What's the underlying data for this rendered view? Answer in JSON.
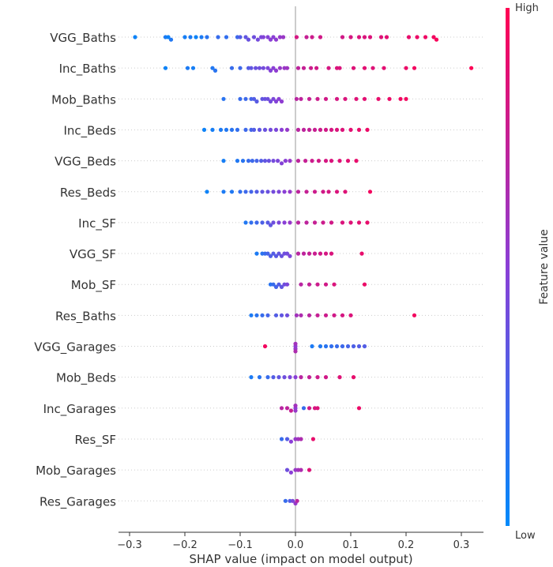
{
  "chart_data": {
    "type": "scatter",
    "subtype": "shap-beeswarm",
    "xlabel": "SHAP value (impact on model output)",
    "xticks": [
      -0.3,
      -0.2,
      -0.1,
      0.0,
      0.1,
      0.2,
      0.3
    ],
    "xtick_labels": [
      "−0.3",
      "−0.2",
      "−0.1",
      "0.0",
      "0.1",
      "0.2",
      "0.3"
    ],
    "xlim": [
      -0.32,
      0.34
    ],
    "grid": false,
    "colorbar": {
      "label": "Feature value",
      "high_label": "High",
      "low_label": "Low",
      "low_color": "#008afb",
      "high_color": "#ff0052"
    },
    "features": [
      {
        "name": "VGG_Baths",
        "points": [
          [
            -0.29,
            0.05
          ],
          [
            -0.235,
            0.1
          ],
          [
            -0.23,
            0.05
          ],
          [
            -0.225,
            0.12
          ],
          [
            -0.2,
            0.08
          ],
          [
            -0.19,
            0.1
          ],
          [
            -0.18,
            0.05
          ],
          [
            -0.17,
            0.1
          ],
          [
            -0.16,
            0.15
          ],
          [
            -0.14,
            0.2
          ],
          [
            -0.125,
            0.18
          ],
          [
            -0.105,
            0.22
          ],
          [
            -0.1,
            0.3
          ],
          [
            -0.09,
            0.35
          ],
          [
            -0.085,
            0.38
          ],
          [
            -0.075,
            0.4
          ],
          [
            -0.068,
            0.42
          ],
          [
            -0.062,
            0.45
          ],
          [
            -0.058,
            0.47
          ],
          [
            -0.05,
            0.48
          ],
          [
            -0.045,
            0.5
          ],
          [
            -0.04,
            0.5
          ],
          [
            -0.035,
            0.52
          ],
          [
            -0.028,
            0.55
          ],
          [
            -0.022,
            0.56
          ],
          [
            0.002,
            0.82
          ],
          [
            0.02,
            0.75
          ],
          [
            0.03,
            0.78
          ],
          [
            0.045,
            0.8
          ],
          [
            0.085,
            0.8
          ],
          [
            0.1,
            0.82
          ],
          [
            0.115,
            0.84
          ],
          [
            0.125,
            0.84
          ],
          [
            0.135,
            0.85
          ],
          [
            0.155,
            0.86
          ],
          [
            0.165,
            0.88
          ],
          [
            0.205,
            0.9
          ],
          [
            0.22,
            0.92
          ],
          [
            0.235,
            0.93
          ],
          [
            0.25,
            0.95
          ],
          [
            0.255,
            0.97
          ]
        ]
      },
      {
        "name": "Inc_Baths",
        "points": [
          [
            -0.235,
            0.05
          ],
          [
            -0.195,
            0.1
          ],
          [
            -0.185,
            0.08
          ],
          [
            -0.15,
            0.12
          ],
          [
            -0.145,
            0.15
          ],
          [
            -0.115,
            0.2
          ],
          [
            -0.1,
            0.22
          ],
          [
            -0.085,
            0.3
          ],
          [
            -0.08,
            0.35
          ],
          [
            -0.072,
            0.38
          ],
          [
            -0.065,
            0.4
          ],
          [
            -0.058,
            0.42
          ],
          [
            -0.05,
            0.45
          ],
          [
            -0.045,
            0.48
          ],
          [
            -0.04,
            0.5
          ],
          [
            -0.035,
            0.52
          ],
          [
            -0.028,
            0.55
          ],
          [
            -0.02,
            0.56
          ],
          [
            -0.015,
            0.58
          ],
          [
            0.005,
            0.72
          ],
          [
            0.015,
            0.75
          ],
          [
            0.028,
            0.78
          ],
          [
            0.038,
            0.8
          ],
          [
            0.06,
            0.82
          ],
          [
            0.075,
            0.84
          ],
          [
            0.08,
            0.84
          ],
          [
            0.105,
            0.86
          ],
          [
            0.125,
            0.88
          ],
          [
            0.14,
            0.86
          ],
          [
            0.16,
            0.88
          ],
          [
            0.2,
            0.92
          ],
          [
            0.215,
            0.95
          ],
          [
            0.318,
            0.99
          ]
        ]
      },
      {
        "name": "Mob_Baths",
        "points": [
          [
            -0.13,
            0.15
          ],
          [
            -0.1,
            0.2
          ],
          [
            -0.09,
            0.22
          ],
          [
            -0.08,
            0.25
          ],
          [
            -0.075,
            0.3
          ],
          [
            -0.07,
            0.32
          ],
          [
            -0.06,
            0.35
          ],
          [
            -0.055,
            0.38
          ],
          [
            -0.05,
            0.4
          ],
          [
            -0.045,
            0.42
          ],
          [
            -0.04,
            0.45
          ],
          [
            -0.035,
            0.48
          ],
          [
            -0.03,
            0.5
          ],
          [
            -0.025,
            0.52
          ],
          [
            0.002,
            0.7
          ],
          [
            0.01,
            0.72
          ],
          [
            0.025,
            0.75
          ],
          [
            0.04,
            0.78
          ],
          [
            0.055,
            0.8
          ],
          [
            0.075,
            0.82
          ],
          [
            0.09,
            0.84
          ],
          [
            0.11,
            0.86
          ],
          [
            0.125,
            0.88
          ],
          [
            0.15,
            0.9
          ],
          [
            0.17,
            0.92
          ],
          [
            0.19,
            0.94
          ],
          [
            0.2,
            0.95
          ]
        ]
      },
      {
        "name": "Inc_Beds",
        "points": [
          [
            -0.165,
            0.05
          ],
          [
            -0.15,
            0.08
          ],
          [
            -0.135,
            0.1
          ],
          [
            -0.125,
            0.12
          ],
          [
            -0.115,
            0.15
          ],
          [
            -0.105,
            0.18
          ],
          [
            -0.09,
            0.22
          ],
          [
            -0.08,
            0.25
          ],
          [
            -0.075,
            0.3
          ],
          [
            -0.065,
            0.35
          ],
          [
            -0.055,
            0.38
          ],
          [
            -0.045,
            0.42
          ],
          [
            -0.035,
            0.45
          ],
          [
            -0.025,
            0.5
          ],
          [
            -0.015,
            0.55
          ],
          [
            0.005,
            0.7
          ],
          [
            0.015,
            0.72
          ],
          [
            0.025,
            0.74
          ],
          [
            0.035,
            0.76
          ],
          [
            0.045,
            0.78
          ],
          [
            0.055,
            0.8
          ],
          [
            0.065,
            0.82
          ],
          [
            0.075,
            0.84
          ],
          [
            0.085,
            0.85
          ],
          [
            0.1,
            0.88
          ],
          [
            0.115,
            0.9
          ],
          [
            0.13,
            0.92
          ]
        ]
      },
      {
        "name": "VGG_Beds",
        "points": [
          [
            -0.13,
            0.08
          ],
          [
            -0.105,
            0.12
          ],
          [
            -0.095,
            0.15
          ],
          [
            -0.085,
            0.2
          ],
          [
            -0.078,
            0.22
          ],
          [
            -0.07,
            0.25
          ],
          [
            -0.062,
            0.3
          ],
          [
            -0.055,
            0.35
          ],
          [
            -0.048,
            0.38
          ],
          [
            -0.04,
            0.42
          ],
          [
            -0.032,
            0.45
          ],
          [
            -0.025,
            0.48
          ],
          [
            -0.018,
            0.5
          ],
          [
            -0.01,
            0.55
          ],
          [
            0.005,
            0.72
          ],
          [
            0.018,
            0.75
          ],
          [
            0.03,
            0.78
          ],
          [
            0.042,
            0.8
          ],
          [
            0.055,
            0.82
          ],
          [
            0.065,
            0.84
          ],
          [
            0.08,
            0.86
          ],
          [
            0.095,
            0.88
          ],
          [
            0.11,
            0.9
          ]
        ]
      },
      {
        "name": "Res_Beds",
        "points": [
          [
            -0.16,
            0.05
          ],
          [
            -0.13,
            0.1
          ],
          [
            -0.115,
            0.12
          ],
          [
            -0.1,
            0.18
          ],
          [
            -0.09,
            0.22
          ],
          [
            -0.08,
            0.25
          ],
          [
            -0.07,
            0.3
          ],
          [
            -0.06,
            0.35
          ],
          [
            -0.05,
            0.38
          ],
          [
            -0.04,
            0.42
          ],
          [
            -0.03,
            0.45
          ],
          [
            -0.02,
            0.5
          ],
          [
            -0.01,
            0.55
          ],
          [
            0.005,
            0.72
          ],
          [
            0.02,
            0.75
          ],
          [
            0.035,
            0.78
          ],
          [
            0.05,
            0.8
          ],
          [
            0.06,
            0.82
          ],
          [
            0.075,
            0.84
          ],
          [
            0.09,
            0.86
          ],
          [
            0.135,
            0.95
          ]
        ]
      },
      {
        "name": "Inc_SF",
        "points": [
          [
            -0.09,
            0.12
          ],
          [
            -0.08,
            0.18
          ],
          [
            -0.07,
            0.22
          ],
          [
            -0.06,
            0.28
          ],
          [
            -0.05,
            0.32
          ],
          [
            -0.045,
            0.35
          ],
          [
            -0.04,
            0.4
          ],
          [
            -0.03,
            0.45
          ],
          [
            -0.02,
            0.5
          ],
          [
            -0.01,
            0.55
          ],
          [
            0.005,
            0.7
          ],
          [
            0.02,
            0.72
          ],
          [
            0.035,
            0.75
          ],
          [
            0.05,
            0.78
          ],
          [
            0.065,
            0.8
          ],
          [
            0.085,
            0.84
          ],
          [
            0.1,
            0.86
          ],
          [
            0.115,
            0.88
          ],
          [
            0.13,
            0.9
          ]
        ]
      },
      {
        "name": "VGG_SF",
        "points": [
          [
            -0.07,
            0.1
          ],
          [
            -0.06,
            0.15
          ],
          [
            -0.055,
            0.2
          ],
          [
            -0.05,
            0.25
          ],
          [
            -0.045,
            0.28
          ],
          [
            -0.04,
            0.3
          ],
          [
            -0.035,
            0.32
          ],
          [
            -0.03,
            0.35
          ],
          [
            -0.025,
            0.38
          ],
          [
            -0.02,
            0.4
          ],
          [
            -0.015,
            0.42
          ],
          [
            -0.01,
            0.45
          ],
          [
            0.005,
            0.7
          ],
          [
            0.015,
            0.72
          ],
          [
            0.025,
            0.75
          ],
          [
            0.035,
            0.77
          ],
          [
            0.045,
            0.8
          ],
          [
            0.055,
            0.82
          ],
          [
            0.065,
            0.84
          ],
          [
            0.12,
            0.9
          ]
        ]
      },
      {
        "name": "Mob_SF",
        "points": [
          [
            -0.045,
            0.15
          ],
          [
            -0.04,
            0.2
          ],
          [
            -0.035,
            0.25
          ],
          [
            -0.03,
            0.3
          ],
          [
            -0.025,
            0.35
          ],
          [
            -0.02,
            0.4
          ],
          [
            -0.015,
            0.45
          ],
          [
            0.01,
            0.7
          ],
          [
            0.025,
            0.74
          ],
          [
            0.04,
            0.78
          ],
          [
            0.055,
            0.8
          ],
          [
            0.07,
            0.84
          ],
          [
            0.125,
            0.92
          ]
        ]
      },
      {
        "name": "Res_Baths",
        "points": [
          [
            -0.08,
            0.1
          ],
          [
            -0.07,
            0.15
          ],
          [
            -0.06,
            0.2
          ],
          [
            -0.05,
            0.25
          ],
          [
            -0.035,
            0.3
          ],
          [
            -0.025,
            0.35
          ],
          [
            -0.015,
            0.4
          ],
          [
            0.002,
            0.6
          ],
          [
            0.01,
            0.65
          ],
          [
            0.025,
            0.7
          ],
          [
            0.04,
            0.75
          ],
          [
            0.055,
            0.78
          ],
          [
            0.07,
            0.8
          ],
          [
            0.085,
            0.82
          ],
          [
            0.1,
            0.85
          ],
          [
            0.215,
            0.95
          ]
        ]
      },
      {
        "name": "VGG_Garages",
        "points": [
          [
            -0.055,
            0.95
          ],
          [
            0.0,
            0.5
          ],
          [
            0.0,
            0.55
          ],
          [
            0.0,
            0.6
          ],
          [
            0.0,
            0.65
          ],
          [
            0.03,
            0.1
          ],
          [
            0.045,
            0.12
          ],
          [
            0.055,
            0.15
          ],
          [
            0.065,
            0.18
          ],
          [
            0.075,
            0.2
          ],
          [
            0.085,
            0.22
          ],
          [
            0.095,
            0.25
          ],
          [
            0.105,
            0.28
          ],
          [
            0.115,
            0.3
          ],
          [
            0.125,
            0.3
          ]
        ]
      },
      {
        "name": "Mob_Beds",
        "points": [
          [
            -0.08,
            0.1
          ],
          [
            -0.065,
            0.15
          ],
          [
            -0.05,
            0.2
          ],
          [
            -0.04,
            0.3
          ],
          [
            -0.03,
            0.35
          ],
          [
            -0.02,
            0.4
          ],
          [
            -0.01,
            0.45
          ],
          [
            0.0,
            0.5
          ],
          [
            0.01,
            0.7
          ],
          [
            0.025,
            0.74
          ],
          [
            0.04,
            0.78
          ],
          [
            0.055,
            0.8
          ],
          [
            0.08,
            0.86
          ],
          [
            0.105,
            0.9
          ]
        ]
      },
      {
        "name": "Inc_Garages",
        "points": [
          [
            -0.025,
            0.7
          ],
          [
            -0.015,
            0.72
          ],
          [
            -0.008,
            0.75
          ],
          [
            0.0,
            0.5
          ],
          [
            0.0,
            0.55
          ],
          [
            0.0,
            0.6
          ],
          [
            0.015,
            0.2
          ],
          [
            0.025,
            0.8
          ],
          [
            0.035,
            0.82
          ],
          [
            0.04,
            0.85
          ],
          [
            0.115,
            0.92
          ]
        ]
      },
      {
        "name": "Res_SF",
        "points": [
          [
            -0.025,
            0.2
          ],
          [
            -0.015,
            0.3
          ],
          [
            -0.008,
            0.5
          ],
          [
            0.0,
            0.55
          ],
          [
            0.005,
            0.6
          ],
          [
            0.01,
            0.65
          ],
          [
            0.032,
            0.9
          ]
        ]
      },
      {
        "name": "Mob_Garages",
        "points": [
          [
            -0.015,
            0.4
          ],
          [
            -0.008,
            0.5
          ],
          [
            0.0,
            0.55
          ],
          [
            0.005,
            0.6
          ],
          [
            0.01,
            0.65
          ],
          [
            0.025,
            0.85
          ]
        ]
      },
      {
        "name": "Res_Garages",
        "points": [
          [
            -0.018,
            0.2
          ],
          [
            -0.01,
            0.3
          ],
          [
            -0.005,
            0.45
          ],
          [
            0.0,
            0.55
          ],
          [
            0.003,
            0.7
          ]
        ]
      }
    ]
  }
}
